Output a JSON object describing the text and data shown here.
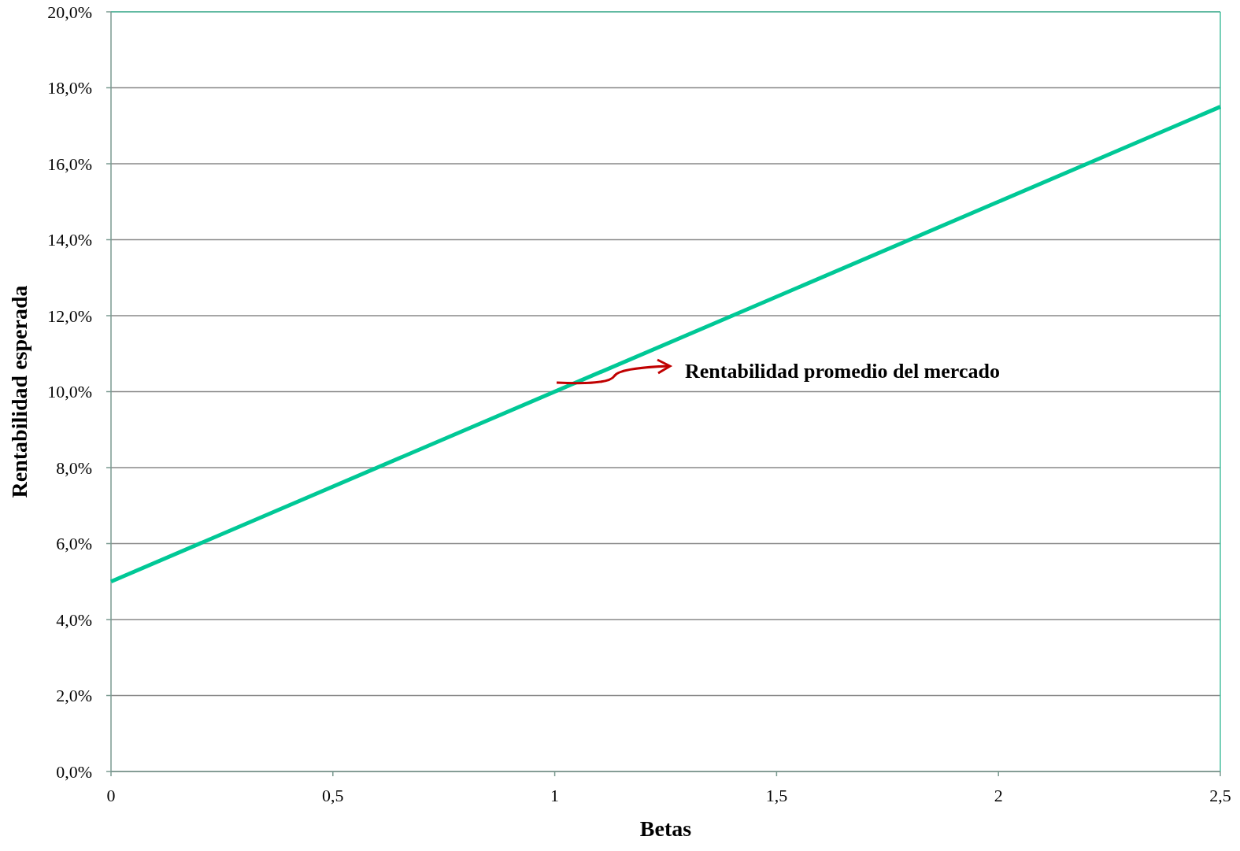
{
  "chart_data": {
    "type": "line",
    "xlabel": "Betas",
    "ylabel": "Rentabilidad esperada",
    "x": [
      0,
      2.5
    ],
    "series": [
      {
        "color": "#00c896",
        "values": [
          5,
          17.5
        ]
      }
    ],
    "xlim": [
      0,
      2.5
    ],
    "xticks": [
      0,
      {
        "value": 0.5,
        "label": "0,5"
      },
      1,
      {
        "value": 1.5,
        "label": "1,5"
      },
      2,
      {
        "value": 2.5,
        "label": "2,5"
      }
    ],
    "ylim": [
      0,
      20
    ],
    "yticks": [
      {
        "value": 0,
        "label": "0,0%"
      },
      {
        "value": 2,
        "label": "2,0%"
      },
      {
        "value": 4,
        "label": "4,0%"
      },
      {
        "value": 6,
        "label": "6,0%"
      },
      {
        "value": 8,
        "label": "8,0%"
      },
      {
        "value": 10,
        "label": "10,0%"
      },
      {
        "value": 12,
        "label": "12,0%"
      },
      {
        "value": 14,
        "label": "14,0%"
      },
      {
        "value": 16,
        "label": "16,0%"
      },
      {
        "value": 18,
        "label": "18,0%"
      },
      {
        "value": 20,
        "label": "20,0%"
      }
    ],
    "grid": "y",
    "marker": "none",
    "line_style": "solid",
    "annotations": [
      "Rentabilidad promedio del mercado"
    ]
  }
}
